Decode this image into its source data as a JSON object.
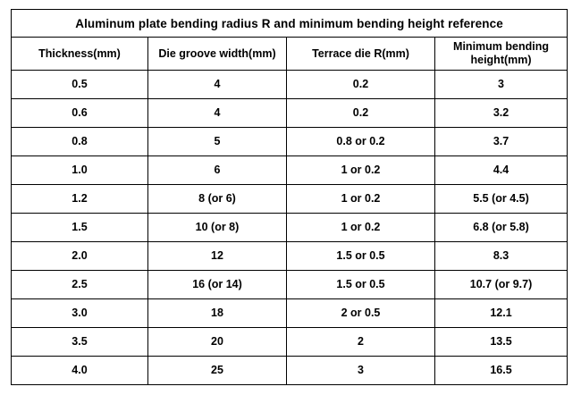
{
  "title": "Aluminum plate bending radius R and minimum bending height reference",
  "columns": [
    "Thickness(mm)",
    "Die groove width(mm)",
    "Terrace die R(mm)",
    "Minimum bending height(mm)"
  ],
  "rows": [
    [
      "0.5",
      "4",
      "0.2",
      "3"
    ],
    [
      "0.6",
      "4",
      "0.2",
      "3.2"
    ],
    [
      "0.8",
      "5",
      "0.8 or 0.2",
      "3.7"
    ],
    [
      "1.0",
      "6",
      "1 or 0.2",
      "4.4"
    ],
    [
      "1.2",
      "8 (or 6)",
      "1 or  0.2",
      "5.5 (or 4.5)"
    ],
    [
      "1.5",
      "10 (or 8)",
      "1 or 0.2",
      "6.8 (or 5.8)"
    ],
    [
      "2.0",
      "12",
      "1.5 or 0.5",
      "8.3"
    ],
    [
      "2.5",
      "16 (or 14)",
      "1.5 or 0.5",
      "10.7 (or 9.7)"
    ],
    [
      "3.0",
      "18",
      "2 or 0.5",
      "12.1"
    ],
    [
      "3.5",
      "20",
      "2",
      "13.5"
    ],
    [
      "4.0",
      "25",
      "3",
      "16.5"
    ]
  ]
}
